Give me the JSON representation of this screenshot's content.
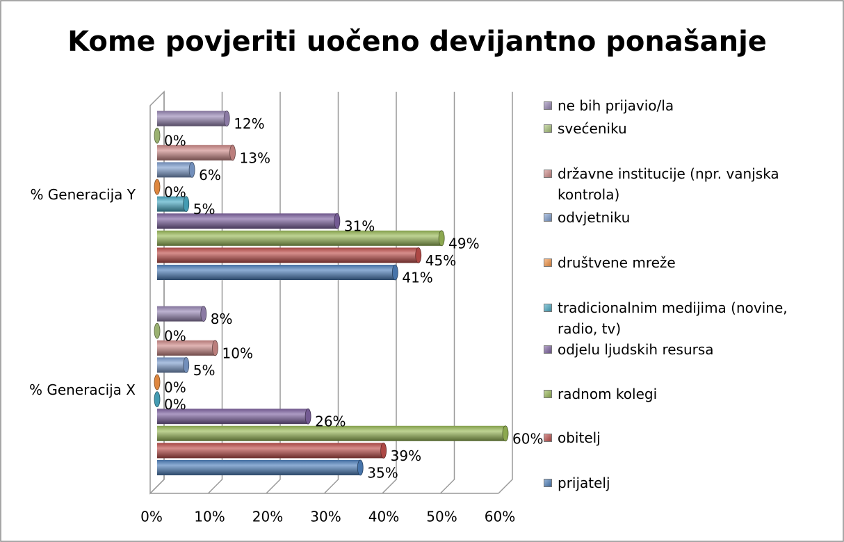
{
  "chart_data": {
    "type": "bar3d_horizontal",
    "title": "Kome povjeriti uočeno devijantno ponašanje",
    "categories": [
      "% Generacija X",
      "% Generacija Y"
    ],
    "series": [
      {
        "name": "prijatelj",
        "color": "#4F81BD",
        "values": [
          35,
          41
        ],
        "value_labels": [
          "35%",
          "41%"
        ]
      },
      {
        "name": "obitelj",
        "color": "#C0504D",
        "values": [
          39,
          45
        ],
        "value_labels": [
          "39%",
          "45%"
        ]
      },
      {
        "name": "radnom kolegi",
        "color": "#9BBB59",
        "values": [
          60,
          49
        ],
        "value_labels": [
          "60%",
          "49%"
        ]
      },
      {
        "name": "odjelu ljudskih resursa",
        "color": "#8064A2",
        "values": [
          26,
          31
        ],
        "value_labels": [
          "26%",
          "31%"
        ]
      },
      {
        "name": "tradicionalnim medijima (novine, radio, tv)",
        "color": "#4BACC6",
        "values": [
          0,
          5
        ],
        "value_labels": [
          "0%",
          "5%"
        ]
      },
      {
        "name": "društvene mreže",
        "color": "#F79646",
        "values": [
          0,
          0
        ],
        "value_labels": [
          "0%",
          "0%"
        ]
      },
      {
        "name": "odvjetniku",
        "color": "#7F9FD0",
        "values": [
          5,
          6
        ],
        "value_labels": [
          "5%",
          "6%"
        ]
      },
      {
        "name": "državne institucije (npr. vanjska kontrola)",
        "color": "#D08C8A",
        "values": [
          10,
          13
        ],
        "value_labels": [
          "10%",
          "13%"
        ]
      },
      {
        "name": "svećeniku",
        "color": "#ABC57C",
        "values": [
          0,
          0
        ],
        "value_labels": [
          "0%",
          "0%"
        ]
      },
      {
        "name": "ne bih prijavio/la",
        "color": "#9A88B6",
        "values": [
          8,
          12
        ],
        "value_labels": [
          "8%",
          "12%"
        ]
      }
    ],
    "xlim": [
      0,
      60
    ],
    "xticks": [
      {
        "value": 0,
        "label": "0%"
      },
      {
        "value": 10,
        "label": "10%"
      },
      {
        "value": 20,
        "label": "20%"
      },
      {
        "value": 30,
        "label": "30%"
      },
      {
        "value": 40,
        "label": "40%"
      },
      {
        "value": 50,
        "label": "50%"
      },
      {
        "value": 60,
        "label": "60%"
      }
    ],
    "grid": true,
    "legend": "right"
  }
}
